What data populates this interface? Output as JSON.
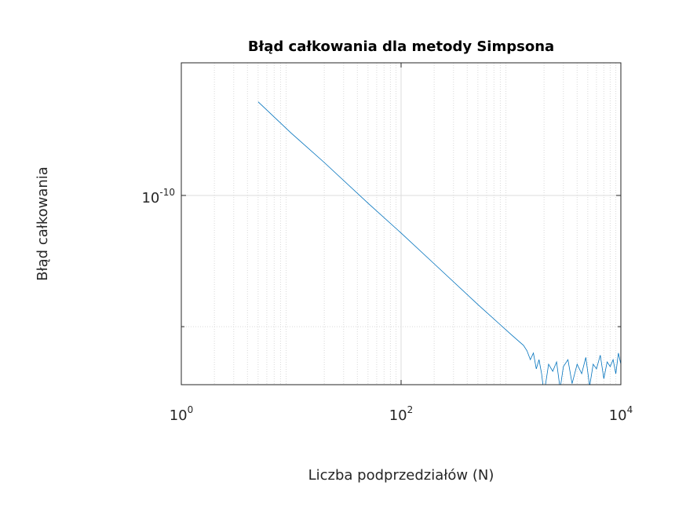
{
  "chart_data": {
    "type": "line",
    "title": "Błąd całkowania dla metody Simpsona",
    "xlabel": "Liczba podprzedziałów (N)",
    "ylabel": "Błąd całkowania",
    "xscale": "log",
    "yscale": "log",
    "grid": true,
    "minor_grid": true,
    "xlim": [
      1,
      10000
    ],
    "xticks": [
      {
        "value": 1,
        "label": "100"
      },
      {
        "value": 100,
        "label": "102"
      },
      {
        "value": 10000,
        "label": "104"
      }
    ],
    "ylim": [
      3.68e-11,
      2.015e-10
    ],
    "yticks": [
      {
        "value": 1e-10,
        "label": "10-10"
      }
    ],
    "yminor_ticks": [
      5e-11
    ],
    "series": [
      {
        "color": "#0072bd",
        "x": [
          5,
          10,
          20,
          50,
          100,
          200,
          500,
          1000,
          1300,
          1400,
          1500,
          1600,
          1700,
          1800,
          1900,
          2000,
          2200,
          2400,
          2600,
          2800,
          3000,
          3300,
          3600,
          4000,
          4400,
          4800,
          5200,
          5600,
          6000,
          6500,
          7000,
          7500,
          8000,
          8500,
          9000,
          9500,
          10000
        ],
        "values": [
          1.64e-10,
          1.39e-10,
          1.19e-10,
          9.6e-11,
          8.2e-11,
          6.97e-11,
          5.62e-11,
          4.8e-11,
          4.53e-11,
          4.4e-11,
          4.2e-11,
          4.35e-11,
          4e-11,
          4.2e-11,
          3.9e-11,
          3.5e-11,
          4.1e-11,
          3.95e-11,
          4.15e-11,
          3.6e-11,
          4.05e-11,
          4.2e-11,
          3.7e-11,
          4.1e-11,
          3.9e-11,
          4.25e-11,
          3.65e-11,
          4.1e-11,
          4e-11,
          4.3e-11,
          3.8e-11,
          4.15e-11,
          4.05e-11,
          4.2e-11,
          3.9e-11,
          4.35e-11,
          4.1e-11
        ]
      }
    ]
  }
}
